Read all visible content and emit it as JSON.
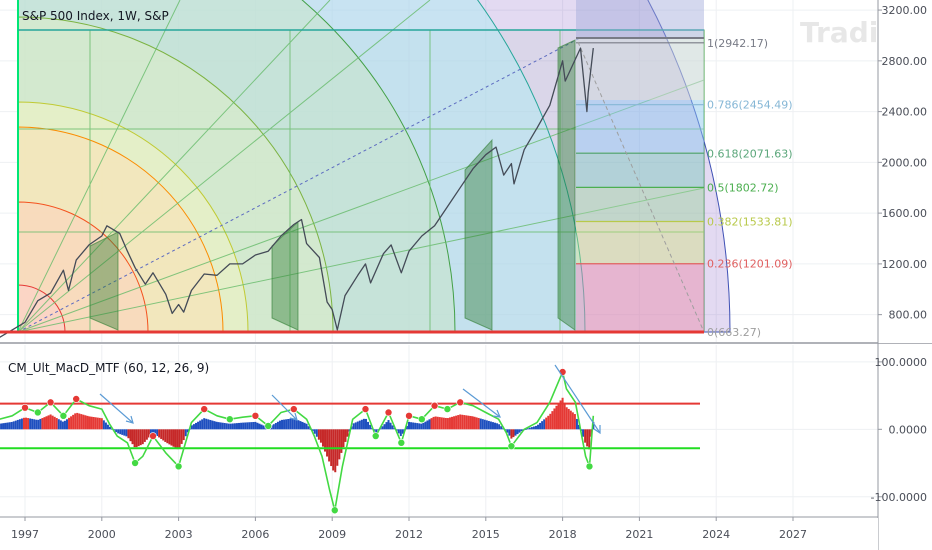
{
  "chart_data": [
    {
      "type": "line",
      "title": "S&P 500 Index, 1W, S&P",
      "ylim": [
        663.27,
        3240
      ],
      "y_ticks": [
        800,
        1200,
        1600,
        2000,
        2400,
        2800,
        3200
      ],
      "y_tick_labels": [
        "800.00",
        "1200.00",
        "1600.00",
        "2000.00",
        "2400.00",
        "2800.00",
        "3200.00"
      ],
      "x_ticks": [
        1997,
        2000,
        2003,
        2006,
        2009,
        2012,
        2015,
        2018,
        2021,
        2024,
        2027
      ],
      "x_tick_labels": [
        "1997",
        "2000",
        "2003",
        "2006",
        "2009",
        "2012",
        "2015",
        "2018",
        "2021",
        "2024",
        "2027"
      ],
      "series": [
        {
          "x": [
            1996.0,
            1996.5,
            1997.0,
            1997.5,
            1998.0,
            1998.5,
            1998.7,
            1999.0,
            1999.5,
            2000.0,
            2000.2,
            2000.7,
            2001.0,
            2001.3,
            2001.7,
            2002.0,
            2002.5,
            2002.75,
            2003.0,
            2003.2,
            2003.5,
            2004.0,
            2004.5,
            2005.0,
            2005.5,
            2006.0,
            2006.5,
            2007.0,
            2007.5,
            2007.8,
            2008.0,
            2008.5,
            2008.8,
            2009.0,
            2009.2,
            2009.5,
            2010.0,
            2010.3,
            2010.5,
            2011.0,
            2011.3,
            2011.7,
            2012.0,
            2012.5,
            2013.0,
            2013.5,
            2014.0,
            2014.5,
            2015.0,
            2015.4,
            2015.7,
            2016.0,
            2016.1,
            2016.5,
            2017.0,
            2017.5,
            2018.0,
            2018.1,
            2018.7,
            2018.95,
            2019.0,
            2019.2
          ],
          "y": [
            620,
            680,
            740,
            910,
            970,
            1150,
            990,
            1230,
            1350,
            1420,
            1500,
            1440,
            1300,
            1170,
            1040,
            1130,
            960,
            810,
            880,
            820,
            990,
            1120,
            1110,
            1200,
            1200,
            1270,
            1300,
            1420,
            1510,
            1550,
            1360,
            1250,
            900,
            840,
            680,
            950,
            1110,
            1200,
            1050,
            1280,
            1350,
            1130,
            1300,
            1420,
            1500,
            1650,
            1800,
            1950,
            2060,
            2120,
            1900,
            1990,
            1830,
            2100,
            2270,
            2450,
            2800,
            2640,
            2900,
            2400,
            2550,
            2900
          ]
        },
        {
          "name": "Fibonacci retracement",
          "levels": [
            {
              "label": "1(2942.17)",
              "value": 2942.17,
              "color": "#787b86"
            },
            {
              "label": "0.786(2454.49)",
              "value": 2454.49,
              "color": "#86b7d6"
            },
            {
              "label": "0.618(2071.63)",
              "value": 2071.63,
              "color": "#5aa67a"
            },
            {
              "label": "0.5(1802.72)",
              "value": 1802.72,
              "color": "#4caf50"
            },
            {
              "label": "0.382(1533.81)",
              "value": 1533.81,
              "color": "#b8c94a"
            },
            {
              "label": "0.236(1201.09)",
              "value": 1201.09,
              "color": "#e06060"
            },
            {
              "label": "0(663.27)",
              "value": 663.27,
              "color": "#9e9e9e"
            }
          ]
        }
      ]
    },
    {
      "type": "bar",
      "title": "CM_Ult_MacD_MTF (60, 12, 26, 9)",
      "ylim": [
        -130,
        125
      ],
      "y_ticks": [
        100,
        0,
        -100
      ],
      "y_tick_labels": [
        "100.0000",
        "0.0000",
        "-100.0000"
      ],
      "reference_lines": [
        {
          "value": 38,
          "color": "#e53935"
        },
        {
          "value": -28,
          "color": "#22dd22"
        }
      ],
      "series": [
        {
          "name": "macd",
          "x": [
            1996.0,
            1996.5,
            1997.0,
            1997.5,
            1998.0,
            1998.5,
            1999.0,
            1999.5,
            2000.0,
            2000.3,
            2000.6,
            2001.0,
            2001.3,
            2001.6,
            2002.0,
            2002.5,
            2003.0,
            2003.5,
            2004.0,
            2004.5,
            2005.0,
            2005.5,
            2006.0,
            2006.5,
            2007.0,
            2007.5,
            2008.0,
            2008.3,
            2008.6,
            2008.9,
            2009.1,
            2009.4,
            2009.8,
            2010.3,
            2010.7,
            2011.2,
            2011.7,
            2012.0,
            2012.5,
            2013.0,
            2013.5,
            2014.0,
            2014.5,
            2015.0,
            2015.5,
            2015.8,
            2016.0,
            2016.5,
            2017.0,
            2017.5,
            2018.0,
            2018.15,
            2018.5,
            2018.9,
            2019.05,
            2019.2
          ],
          "y": [
            15,
            20,
            32,
            25,
            40,
            20,
            45,
            35,
            30,
            8,
            -10,
            -20,
            -50,
            -40,
            -10,
            -35,
            -55,
            10,
            30,
            20,
            15,
            18,
            20,
            5,
            25,
            30,
            15,
            -10,
            -40,
            -90,
            -120,
            -55,
            15,
            30,
            -10,
            25,
            -20,
            20,
            15,
            35,
            30,
            40,
            35,
            25,
            15,
            -5,
            -25,
            0,
            10,
            40,
            85,
            60,
            40,
            -40,
            -55,
            20
          ]
        }
      ]
    }
  ],
  "watermark": "Tradingview"
}
